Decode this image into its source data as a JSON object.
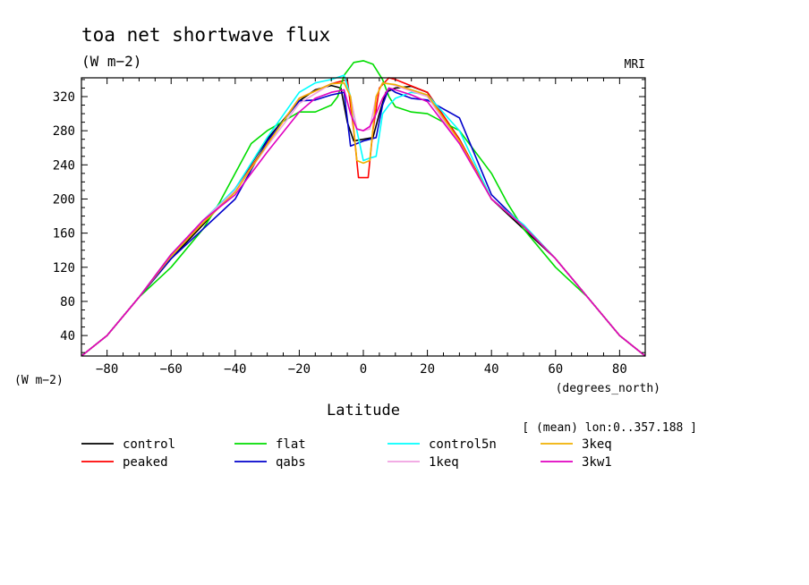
{
  "chart_data": {
    "type": "line",
    "title": "toa net shortwave flux",
    "subtitle": "(W m−2)",
    "source_label": "MRI",
    "xlabel": "Latitude",
    "x_units": "(degrees_north)",
    "y_units": "(W m−2)",
    "annotation": "[ (mean) lon:0..357.188 ]",
    "xlim": [
      -88,
      88
    ],
    "ylim": [
      16,
      342
    ],
    "xticks": [
      -80,
      -60,
      -40,
      -20,
      0,
      20,
      40,
      60,
      80
    ],
    "yticks": [
      40,
      80,
      120,
      160,
      200,
      240,
      280,
      320
    ],
    "grid": false,
    "legend_position": "bottom",
    "series": [
      {
        "name": "control",
        "color": "#000000",
        "x": [
          -88,
          -80,
          -70,
          -60,
          -50,
          -40,
          -30,
          -20,
          -15,
          -10,
          -7,
          -5,
          -3,
          0,
          3,
          5,
          7,
          10,
          15,
          20,
          30,
          40,
          50,
          60,
          70,
          80,
          88
        ],
        "y": [
          16,
          40,
          85,
          130,
          170,
          212,
          270,
          315,
          328,
          333,
          330,
          290,
          268,
          270,
          272,
          300,
          325,
          330,
          332,
          325,
          270,
          200,
          165,
          130,
          85,
          40,
          16
        ]
      },
      {
        "name": "peaked",
        "color": "#ff0000",
        "x": [
          -88,
          -80,
          -70,
          -60,
          -50,
          -40,
          -30,
          -20,
          -10,
          -5,
          -3,
          -1.5,
          1.5,
          3,
          5,
          8,
          10,
          20,
          30,
          40,
          50,
          60,
          70,
          80,
          88
        ],
        "y": [
          16,
          40,
          85,
          135,
          172,
          210,
          265,
          318,
          335,
          340,
          280,
          225,
          225,
          280,
          330,
          342,
          340,
          325,
          270,
          200,
          168,
          130,
          85,
          40,
          16
        ]
      },
      {
        "name": "flat",
        "color": "#00dd00",
        "x": [
          -88,
          -80,
          -70,
          -60,
          -50,
          -45,
          -40,
          -35,
          -30,
          -20,
          -15,
          -10,
          -8,
          -6,
          -3,
          0,
          3,
          6,
          8,
          10,
          15,
          20,
          30,
          40,
          45,
          50,
          60,
          70,
          80,
          88
        ],
        "y": [
          16,
          40,
          85,
          120,
          165,
          195,
          230,
          265,
          280,
          302,
          302,
          310,
          320,
          345,
          360,
          362,
          358,
          340,
          320,
          308,
          302,
          300,
          280,
          230,
          195,
          165,
          120,
          85,
          40,
          16
        ]
      },
      {
        "name": "qabs",
        "color": "#0000cc",
        "x": [
          -88,
          -80,
          -70,
          -60,
          -50,
          -40,
          -30,
          -20,
          -15,
          -10,
          -6,
          -4,
          -2,
          0,
          2,
          4,
          6,
          8,
          10,
          15,
          20,
          30,
          40,
          50,
          60,
          70,
          80,
          88
        ],
        "y": [
          16,
          40,
          85,
          130,
          165,
          200,
          268,
          315,
          316,
          322,
          325,
          262,
          265,
          268,
          270,
          272,
          310,
          330,
          325,
          318,
          316,
          295,
          205,
          168,
          130,
          85,
          40,
          16
        ]
      },
      {
        "name": "control5n",
        "color": "#00ffff",
        "x": [
          -88,
          -80,
          -70,
          -60,
          -50,
          -40,
          -30,
          -20,
          -15,
          -10,
          -6,
          -4,
          -2,
          0,
          2,
          4,
          6,
          8,
          10,
          15,
          20,
          30,
          40,
          50,
          60,
          70,
          80,
          88
        ],
        "y": [
          16,
          40,
          85,
          135,
          175,
          212,
          272,
          325,
          336,
          340,
          345,
          320,
          280,
          245,
          248,
          250,
          300,
          310,
          318,
          325,
          322,
          280,
          200,
          170,
          130,
          85,
          40,
          16
        ]
      },
      {
        "name": "1keq",
        "color": "#f0a0e0",
        "x": [
          -88,
          -80,
          -70,
          -60,
          -50,
          -40,
          -30,
          -20,
          -10,
          -6,
          -4,
          -2,
          0,
          2,
          4,
          6,
          8,
          10,
          20,
          30,
          40,
          50,
          60,
          70,
          80,
          88
        ],
        "y": [
          16,
          40,
          85,
          135,
          175,
          210,
          262,
          312,
          335,
          336,
          320,
          282,
          280,
          282,
          320,
          336,
          335,
          333,
          320,
          265,
          200,
          168,
          130,
          85,
          40,
          16
        ]
      },
      {
        "name": "3keq",
        "color": "#f0b000",
        "x": [
          -88,
          -80,
          -70,
          -60,
          -50,
          -40,
          -30,
          -20,
          -10,
          -6,
          -4,
          -2,
          0,
          2,
          4,
          6,
          8,
          10,
          20,
          30,
          40,
          50,
          60,
          70,
          80,
          88
        ],
        "y": [
          16,
          40,
          85,
          133,
          172,
          208,
          264,
          318,
          335,
          336,
          320,
          245,
          242,
          245,
          320,
          336,
          335,
          334,
          322,
          268,
          200,
          168,
          130,
          85,
          40,
          16
        ]
      },
      {
        "name": "3kw1",
        "color": "#e000c0",
        "x": [
          -88,
          -80,
          -70,
          -60,
          -50,
          -40,
          -30,
          -20,
          -15,
          -10,
          -6,
          -4,
          -2,
          0,
          2,
          4,
          6,
          8,
          10,
          15,
          20,
          30,
          40,
          50,
          60,
          70,
          80,
          88
        ],
        "y": [
          16,
          40,
          85,
          135,
          175,
          205,
          255,
          302,
          318,
          325,
          328,
          300,
          282,
          280,
          285,
          300,
          318,
          330,
          328,
          322,
          314,
          265,
          200,
          168,
          130,
          85,
          40,
          16
        ]
      }
    ]
  }
}
